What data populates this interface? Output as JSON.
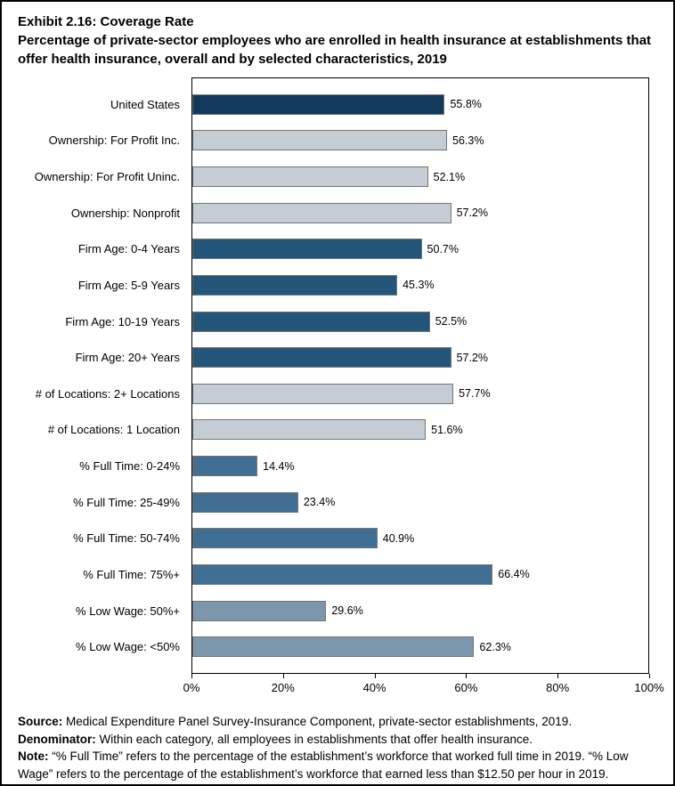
{
  "header": {
    "title": "Exhibit 2.16: Coverage Rate",
    "subtitle": "Percentage of private-sector employees who are enrolled in health insurance at establishments that offer health insurance, overall and by selected characteristics, 2019"
  },
  "chart_data": {
    "type": "bar",
    "orientation": "horizontal",
    "title": "Exhibit 2.16: Coverage Rate",
    "xlabel": "",
    "ylabel": "",
    "xlim": [
      0,
      100
    ],
    "grid": false,
    "legend": "none",
    "categories": [
      "United States",
      "Ownership: For Profit Inc.",
      "Ownership: For Profit Uninc.",
      "Ownership: Nonprofit",
      "Firm Age: 0-4 Years",
      "Firm Age: 5-9 Years",
      "Firm Age: 10-19 Years",
      "Firm Age: 20+ Years",
      "# of Locations: 2+ Locations",
      "# of Locations: 1 Location",
      "% Full Time: 0-24%",
      "% Full Time: 25-49%",
      "% Full Time: 50-74%",
      "% Full Time: 75%+",
      "% Low Wage: 50%+",
      "% Low Wage: <50%"
    ],
    "values": [
      55.8,
      56.3,
      52.1,
      57.2,
      50.7,
      45.3,
      52.5,
      57.2,
      57.7,
      51.6,
      14.4,
      23.4,
      40.9,
      66.4,
      29.6,
      62.3
    ],
    "value_labels": [
      "55.8%",
      "56.3%",
      "52.1%",
      "57.2%",
      "50.7%",
      "45.3%",
      "52.5%",
      "57.2%",
      "57.7%",
      "51.6%",
      "14.4%",
      "23.4%",
      "40.9%",
      "66.4%",
      "29.6%",
      "62.3%"
    ],
    "color_keys": [
      "navy",
      "gray",
      "gray",
      "gray",
      "dark_steel",
      "dark_steel",
      "dark_steel",
      "dark_steel",
      "gray",
      "gray",
      "steel",
      "steel",
      "steel",
      "steel",
      "light_steel",
      "light_steel"
    ],
    "colors": {
      "navy": "#12395C",
      "gray": "#C4CCD4",
      "dark_steel": "#245679",
      "steel": "#416E93",
      "light_steel": "#7C96AC",
      "bar_border": "#757575"
    },
    "x_ticks": [
      "0%",
      "20%",
      "40%",
      "60%",
      "80%",
      "100%"
    ]
  },
  "footer": {
    "source_label": "Source:",
    "source_text": " Medical Expenditure Panel Survey-Insurance Component, private-sector establishments, 2019.",
    "denominator_label": "Denominator:",
    "denominator_text": " Within each category, all employees in establishments that offer health insurance.",
    "note_label": "Note:",
    "note_text": " “% Full Time” refers to the percentage of the establishment’s workforce that worked full time in 2019. “% Low Wage” refers to the percentage of the establishment’s workforce that earned less than $12.50 per hour in 2019."
  }
}
